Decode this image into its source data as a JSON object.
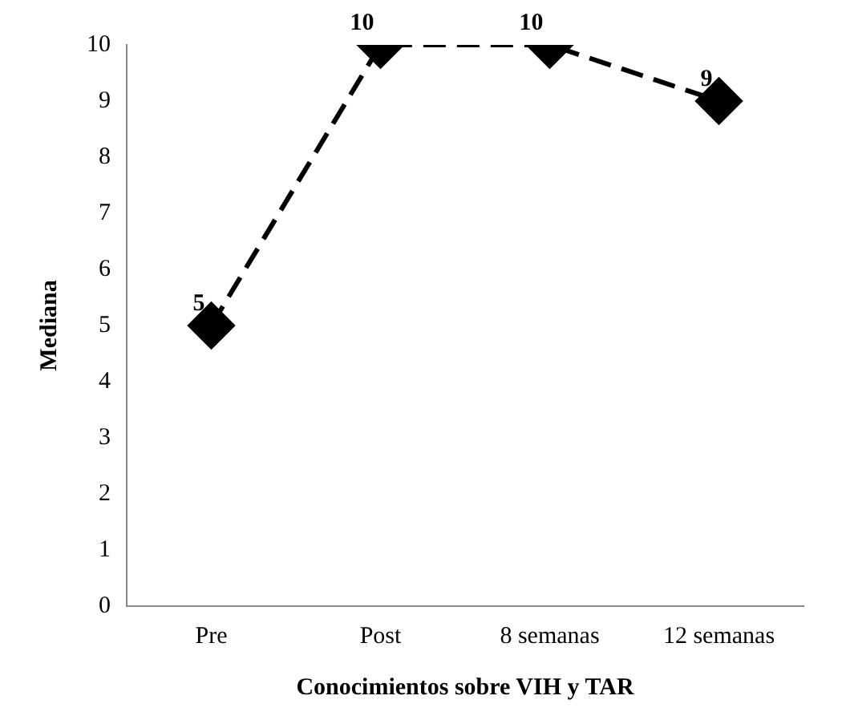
{
  "chart_data": {
    "type": "line",
    "xlabel": "Conocimientos sobre VIH y TAR",
    "ylabel": "Mediana",
    "categories": [
      "Pre",
      "Post",
      "8 semanas",
      "12 semanas"
    ],
    "series": [
      {
        "color": "#000000",
        "values": [
          5,
          10,
          10,
          9
        ]
      }
    ],
    "ylim": [
      0,
      10
    ],
    "yticks": [
      0,
      1,
      2,
      3,
      4,
      5,
      6,
      7,
      8,
      9,
      10
    ],
    "grid": false,
    "legend": false,
    "marker": "diamond",
    "line_style": "dashed",
    "data_labels": true
  }
}
